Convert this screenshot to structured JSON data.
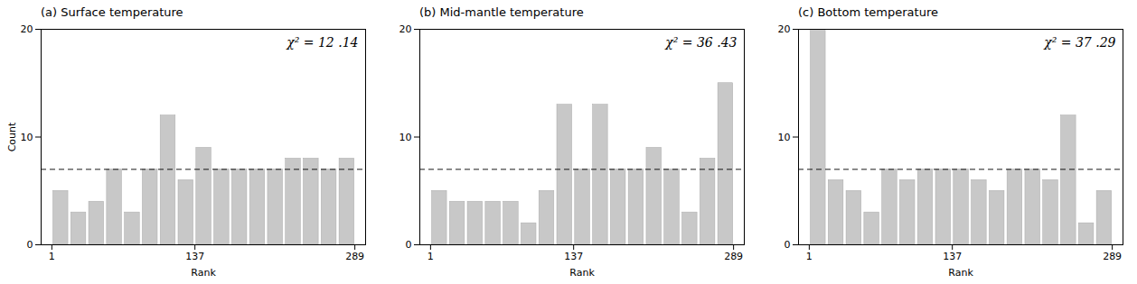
{
  "chart_data": [
    {
      "type": "histogram",
      "title": "(a) Surface temperature",
      "bins": [
        1,
        18,
        35,
        52,
        69,
        86,
        103,
        120,
        137,
        154,
        171,
        188,
        205,
        222,
        239,
        256,
        273,
        290
      ],
      "values": [
        5,
        3,
        4,
        7,
        3,
        7,
        12,
        6,
        9,
        7,
        7,
        7,
        7,
        8,
        8,
        7,
        8
      ],
      "color": "#c8c8c8",
      "reference_y": 7.0,
      "annotation": "χ² = 12 .14",
      "xlim": [
        -9.2,
        299.2
      ],
      "xticks": [
        1,
        137,
        289
      ],
      "ylim": [
        0,
        20
      ],
      "yticks": [
        0,
        10,
        20
      ],
      "xlabel": "Rank",
      "ylabel": "Count"
    },
    {
      "type": "histogram",
      "title": "(b) Mid-mantle temperature",
      "bins": [
        1,
        18,
        35,
        52,
        69,
        86,
        103,
        120,
        137,
        154,
        171,
        188,
        205,
        222,
        239,
        256,
        273,
        290
      ],
      "values": [
        5,
        4,
        4,
        4,
        4,
        2,
        5,
        13,
        7,
        13,
        7,
        7,
        9,
        7,
        3,
        8,
        15
      ],
      "color": "#c8c8c8",
      "reference_y": 7.0,
      "annotation": "χ² = 36 .43",
      "xlim": [
        -9.2,
        299.2
      ],
      "xticks": [
        1,
        137,
        289
      ],
      "ylim": [
        0,
        20
      ],
      "yticks": [
        0,
        10,
        20
      ],
      "xlabel": "Rank"
    },
    {
      "type": "histogram",
      "title": "(c) Bottom temperature",
      "bins": [
        1,
        18,
        35,
        52,
        69,
        86,
        103,
        120,
        137,
        154,
        171,
        188,
        205,
        222,
        239,
        256,
        273,
        290
      ],
      "values": [
        20,
        6,
        5,
        3,
        7,
        6,
        7,
        7,
        7,
        6,
        5,
        7,
        7,
        6,
        12,
        2,
        5
      ],
      "color": "#c8c8c8",
      "reference_y": 7.0,
      "annotation": "χ² = 37 .29",
      "xlim": [
        -9.2,
        299.2
      ],
      "xticks": [
        1,
        137,
        289
      ],
      "ylim": [
        0,
        20
      ],
      "yticks": [
        0,
        10,
        20
      ],
      "xlabel": "Rank"
    }
  ]
}
